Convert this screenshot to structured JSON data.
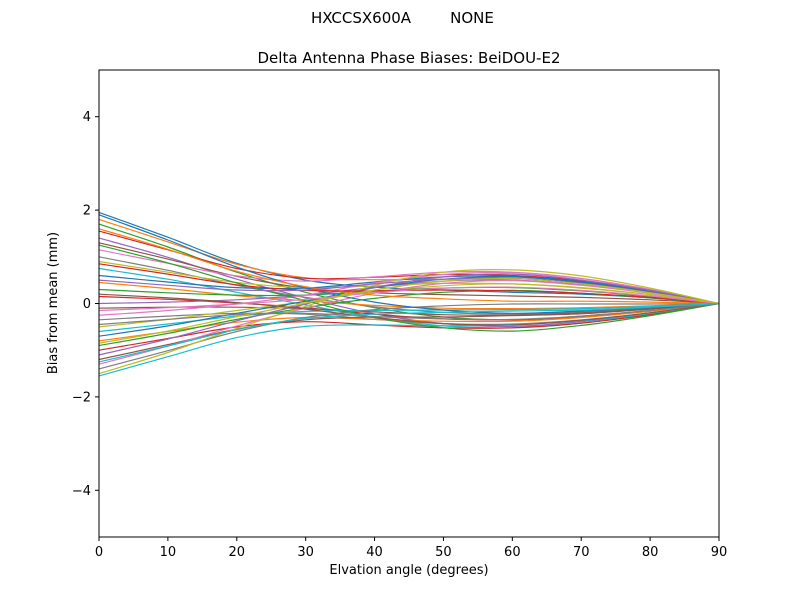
{
  "figure": {
    "title_left": "HXCCSX600A",
    "title_right": "NONE",
    "axes_title": "Delta Antenna Phase Biases: BeiDOU-E2",
    "xlabel": "Elvation angle (degrees)",
    "ylabel": "Bias from mean (mm)",
    "background": "#ffffff",
    "axes_edge_color": "#000000"
  },
  "chart_data": {
    "type": "line",
    "suptitle": "HXCCSX600A      NONE",
    "title": "Delta Antenna Phase Biases: BeiDOU-E2",
    "xlabel": "Elvation angle (degrees)",
    "ylabel": "Bias from mean (mm)",
    "xlim": [
      0,
      90
    ],
    "ylim": [
      -5,
      5
    ],
    "xticks": [
      0,
      10,
      20,
      30,
      40,
      50,
      60,
      70,
      80,
      90
    ],
    "yticks": [
      -4,
      -2,
      0,
      2,
      4
    ],
    "grid": false,
    "legend": "none",
    "color_cycle": [
      "#1f77b4",
      "#ff7f0e",
      "#2ca02c",
      "#d62728",
      "#9467bd",
      "#8c564b",
      "#e377c2",
      "#7f7f7f",
      "#bcbd22",
      "#17becf"
    ],
    "x": [
      0,
      10,
      20,
      30,
      40,
      50,
      60,
      70,
      80,
      90
    ],
    "series": [
      {
        "values": [
          1.95,
          1.42,
          0.86,
          0.5,
          0.35,
          0.29,
          0.24,
          0.2,
          0.12,
          0.0
        ]
      },
      {
        "values": [
          1.8,
          1.32,
          0.84,
          0.55,
          0.51,
          0.52,
          0.5,
          0.4,
          0.23,
          0.0
        ]
      },
      {
        "values": [
          1.7,
          1.21,
          0.67,
          0.24,
          -0.09,
          -0.29,
          -0.35,
          -0.27,
          -0.15,
          0.0
        ]
      },
      {
        "values": [
          1.55,
          1.15,
          0.75,
          0.54,
          0.56,
          0.62,
          0.6,
          0.49,
          0.28,
          0.0
        ]
      },
      {
        "values": [
          1.4,
          0.99,
          0.52,
          0.12,
          -0.22,
          -0.43,
          -0.49,
          -0.39,
          -0.22,
          0.0
        ]
      },
      {
        "values": [
          1.3,
          0.95,
          0.58,
          0.33,
          0.23,
          0.19,
          0.16,
          0.13,
          0.08,
          0.0
        ]
      },
      {
        "values": [
          1.15,
          0.86,
          0.59,
          0.48,
          0.57,
          0.67,
          0.67,
          0.54,
          0.3,
          0.0
        ]
      },
      {
        "values": [
          1.0,
          0.71,
          0.39,
          0.13,
          -0.07,
          -0.19,
          -0.23,
          -0.18,
          -0.1,
          0.0
        ]
      },
      {
        "values": [
          0.9,
          0.67,
          0.45,
          0.34,
          0.38,
          0.43,
          0.42,
          0.34,
          0.19,
          0.0
        ]
      },
      {
        "values": [
          0.75,
          0.52,
          0.24,
          -0.03,
          -0.3,
          -0.48,
          -0.52,
          -0.42,
          -0.23,
          0.0
        ]
      },
      {
        "values": [
          0.6,
          0.46,
          0.34,
          0.33,
          0.46,
          0.57,
          0.58,
          0.47,
          0.26,
          0.0
        ]
      },
      {
        "values": [
          0.45,
          0.32,
          0.17,
          0.06,
          -0.04,
          -0.1,
          -0.11,
          -0.09,
          -0.05,
          0.0
        ]
      },
      {
        "values": [
          0.3,
          0.23,
          0.18,
          0.18,
          0.27,
          0.33,
          0.34,
          0.27,
          0.15,
          0.0
        ]
      },
      {
        "values": [
          0.15,
          0.09,
          0.01,
          -0.09,
          -0.23,
          -0.33,
          -0.35,
          -0.28,
          -0.16,
          0.0
        ]
      },
      {
        "values": [
          0.0,
          0.03,
          0.08,
          0.18,
          0.35,
          0.48,
          0.5,
          0.4,
          0.23,
          0.0
        ]
      },
      {
        "values": [
          -0.1,
          -0.08,
          -0.08,
          -0.11,
          -0.18,
          -0.24,
          -0.25,
          -0.2,
          -0.11,
          0.0
        ]
      },
      {
        "values": [
          -0.25,
          -0.15,
          -0.01,
          0.18,
          0.44,
          0.62,
          0.66,
          0.53,
          0.3,
          0.0
        ]
      },
      {
        "values": [
          -0.35,
          -0.27,
          -0.21,
          -0.23,
          -0.34,
          -0.43,
          -0.44,
          -0.35,
          -0.2,
          0.0
        ]
      },
      {
        "values": [
          -0.5,
          -0.34,
          -0.15,
          0.04,
          0.25,
          0.38,
          0.42,
          0.33,
          0.19,
          0.0
        ]
      },
      {
        "values": [
          -0.6,
          -0.44,
          -0.27,
          -0.17,
          -0.15,
          -0.14,
          -0.13,
          -0.11,
          -0.06,
          0.0
        ]
      },
      {
        "values": [
          -0.7,
          -0.48,
          -0.21,
          0.05,
          0.34,
          0.52,
          0.57,
          0.45,
          0.25,
          0.0
        ]
      },
      {
        "values": [
          -0.8,
          -0.6,
          -0.4,
          -0.3,
          -0.34,
          -0.38,
          -0.38,
          -0.3,
          -0.17,
          0.0
        ]
      },
      {
        "values": [
          -0.9,
          -0.64,
          -0.34,
          -0.09,
          0.11,
          0.24,
          0.28,
          0.22,
          0.12,
          0.0
        ]
      },
      {
        "values": [
          -1.0,
          -0.75,
          -0.5,
          -0.39,
          -0.46,
          -0.52,
          -0.52,
          -0.42,
          -0.24,
          0.0
        ]
      },
      {
        "values": [
          -1.1,
          -0.76,
          -0.37,
          -0.01,
          0.34,
          0.57,
          0.63,
          0.5,
          0.28,
          0.0
        ]
      },
      {
        "values": [
          -1.2,
          -0.88,
          -0.55,
          -0.35,
          -0.29,
          -0.29,
          -0.26,
          -0.22,
          -0.12,
          0.0
        ]
      },
      {
        "values": [
          -1.3,
          -0.91,
          -0.48,
          -0.1,
          0.22,
          0.43,
          0.49,
          0.39,
          0.22,
          0.0
        ]
      },
      {
        "values": [
          -1.4,
          -1.01,
          -0.6,
          -0.3,
          -0.13,
          -0.05,
          -0.01,
          -0.01,
          -0.01,
          0.0
        ]
      },
      {
        "values": [
          -1.5,
          -1.05,
          -0.53,
          -0.06,
          0.39,
          0.67,
          0.72,
          0.59,
          0.33,
          0.0
        ]
      },
      {
        "values": [
          -1.55,
          -1.14,
          -0.73,
          -0.49,
          -0.46,
          -0.48,
          -0.45,
          -0.37,
          -0.21,
          0.0
        ]
      },
      {
        "values": [
          1.9,
          1.36,
          0.78,
          0.33,
          0.03,
          -0.14,
          -0.21,
          -0.16,
          -0.09,
          0.0
        ]
      },
      {
        "values": [
          1.6,
          1.16,
          0.69,
          0.36,
          0.18,
          0.1,
          0.05,
          0.05,
          0.03,
          0.0
        ]
      },
      {
        "values": [
          1.25,
          0.87,
          0.44,
          0.06,
          -0.3,
          -0.52,
          -0.59,
          -0.47,
          -0.26,
          0.0
        ]
      },
      {
        "values": [
          0.85,
          0.63,
          0.4,
          0.28,
          0.27,
          0.29,
          0.27,
          0.22,
          0.13,
          0.0
        ]
      },
      {
        "values": [
          0.5,
          0.39,
          0.29,
          0.29,
          0.42,
          0.52,
          0.54,
          0.43,
          0.24,
          0.0
        ]
      },
      {
        "values": [
          0.2,
          0.12,
          0.02,
          -0.12,
          -0.3,
          -0.43,
          -0.46,
          -0.36,
          -0.2,
          0.0
        ]
      },
      {
        "values": [
          -0.15,
          -0.09,
          -0.01,
          0.09,
          0.23,
          0.33,
          0.35,
          0.28,
          0.16,
          0.0
        ]
      },
      {
        "values": [
          -0.45,
          -0.34,
          -0.24,
          -0.21,
          -0.28,
          -0.33,
          -0.34,
          -0.27,
          -0.15,
          0.0
        ]
      },
      {
        "values": [
          -0.85,
          -0.59,
          -0.28,
          0.01,
          0.29,
          0.48,
          0.53,
          0.42,
          0.23,
          0.0
        ]
      },
      {
        "values": [
          -1.25,
          -0.91,
          -0.56,
          -0.32,
          -0.23,
          -0.19,
          -0.16,
          -0.14,
          -0.08,
          0.0
        ]
      }
    ]
  }
}
